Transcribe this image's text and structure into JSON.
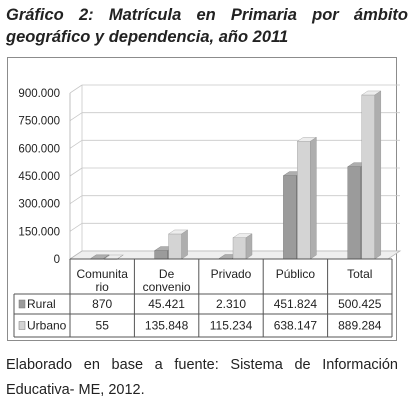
{
  "title_line1": "Gráfico 2: Matrícula en Primaria por ámbito",
  "title_line2": "geográfico y dependencia, año 2011",
  "source_line1": "Elaborado en base a fuente: Sistema de Información",
  "source_line2": "Educativa- ME, 2012.",
  "chart_data": {
    "type": "bar",
    "style": "3d-clustered-column",
    "categories": [
      [
        "Comunita",
        "rio"
      ],
      [
        "De",
        "convenio"
      ],
      [
        "Privado"
      ],
      [
        "Público"
      ],
      [
        "Total"
      ]
    ],
    "series": [
      {
        "name": "Rural",
        "values": [
          870,
          45421,
          2310,
          451824,
          500425
        ],
        "labels": [
          "870",
          "45.421",
          "2.310",
          "451.824",
          "500.425"
        ],
        "color": "#9b9b9b"
      },
      {
        "name": "Urbano",
        "values": [
          55,
          135848,
          115234,
          638147,
          889284
        ],
        "labels": [
          "55",
          "135.848",
          "115.234",
          "638.147",
          "889.284"
        ],
        "color": "#d4d4d4"
      }
    ],
    "y_ticks": [
      0,
      150000,
      300000,
      450000,
      600000,
      750000,
      900000
    ],
    "y_tick_labels": [
      "0",
      "150.000",
      "300.000",
      "450.000",
      "600.000",
      "750.000",
      "900.000"
    ],
    "ylim": [
      0,
      900000
    ],
    "grid": true,
    "legend": "data-table-left"
  }
}
